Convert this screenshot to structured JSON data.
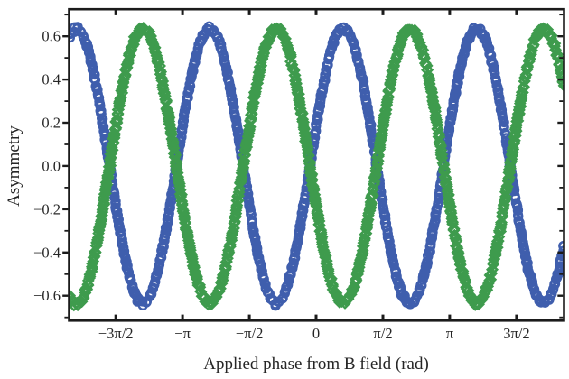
{
  "figure": {
    "background": "#ffffff",
    "frame_color": "#1b1b1b",
    "text_color": "#262626"
  },
  "chart_data": {
    "type": "scatter",
    "title": "",
    "xlabel": "Applied phase from B field (rad)",
    "ylabel": "Asymmetry",
    "xlim": [
      -5.81,
      5.83
    ],
    "ylim": [
      -0.715,
      0.725
    ],
    "grid": false,
    "legend": null,
    "x_ticks": [
      {
        "value": -4.71239,
        "label": "−3π/2"
      },
      {
        "value": -3.14159,
        "label": "−π"
      },
      {
        "value": -1.5708,
        "label": "−π/2"
      },
      {
        "value": 0,
        "label": "0"
      },
      {
        "value": 1.5708,
        "label": "π/2"
      },
      {
        "value": 3.14159,
        "label": "π"
      },
      {
        "value": 4.71239,
        "label": "3π/2"
      }
    ],
    "y_ticks": [
      {
        "value": 0.6,
        "label": "0.6"
      },
      {
        "value": 0.4,
        "label": "0.4"
      },
      {
        "value": 0.2,
        "label": "0.2"
      },
      {
        "value": 0.0,
        "label": "0.0"
      },
      {
        "value": -0.2,
        "label": "−0.2"
      },
      {
        "value": -0.4,
        "label": "−0.4"
      },
      {
        "value": -0.6,
        "label": "−0.6"
      }
    ],
    "y_minor_values": [
      -0.7,
      -0.5,
      -0.3,
      -0.1,
      0.1,
      0.3,
      0.5,
      0.7
    ],
    "series": [
      {
        "name": "blue-circles",
        "marker": "circle",
        "color": "#3F5EAD",
        "model": "y = A*cos(2*(x - x0))",
        "amplitude": 0.635,
        "x0": 0.64,
        "sign": 1,
        "period_rad": 3.14159,
        "marker_size_px": 4.4,
        "stroke_px": 2.4,
        "spacing_px": 4.4,
        "jitter_y": 0.01,
        "jitter_x": 0.012,
        "passes": 2,
        "seed": 20240601
      },
      {
        "name": "green-diamonds",
        "marker": "diamond",
        "color": "#3E9B4D",
        "model": "y = -A*cos(2*(x - x0))",
        "amplitude": 0.635,
        "x0": 0.64,
        "sign": -1,
        "period_rad": 3.14159,
        "marker_size_px": 5.2,
        "stroke_px": 2.4,
        "spacing_px": 4.4,
        "jitter_y": 0.01,
        "jitter_x": 0.012,
        "passes": 2,
        "seed": 77130955
      }
    ]
  }
}
